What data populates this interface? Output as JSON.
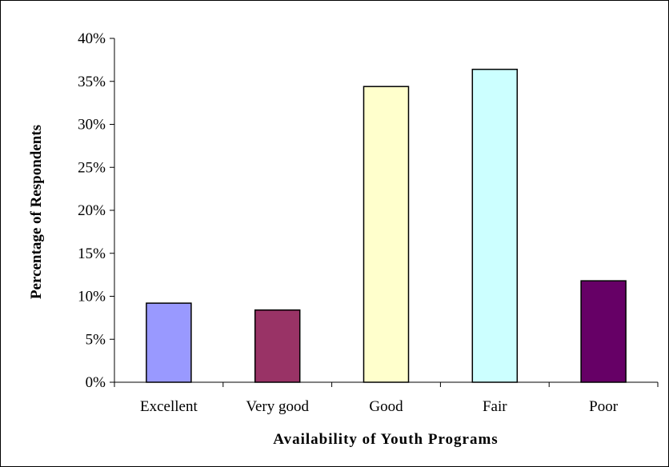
{
  "chart_data": {
    "type": "bar",
    "title": "",
    "xlabel": "Availability of Youth Programs",
    "ylabel": "Percentage of Respondents",
    "categories": [
      "Excellent",
      "Very good",
      "Good",
      "Fair",
      "Poor"
    ],
    "values": [
      9.2,
      8.4,
      34.4,
      36.4,
      11.8
    ],
    "bar_colors": [
      "#9999FF",
      "#993366",
      "#FFFFCC",
      "#CCFFFF",
      "#660066"
    ],
    "ylim": [
      0,
      40
    ],
    "yticks": [
      0,
      5,
      10,
      15,
      20,
      25,
      30,
      35,
      40
    ],
    "ytick_labels": [
      "0%",
      "5%",
      "10%",
      "15%",
      "20%",
      "25%",
      "30%",
      "35%",
      "40%"
    ],
    "grid": false,
    "legend": "none"
  }
}
